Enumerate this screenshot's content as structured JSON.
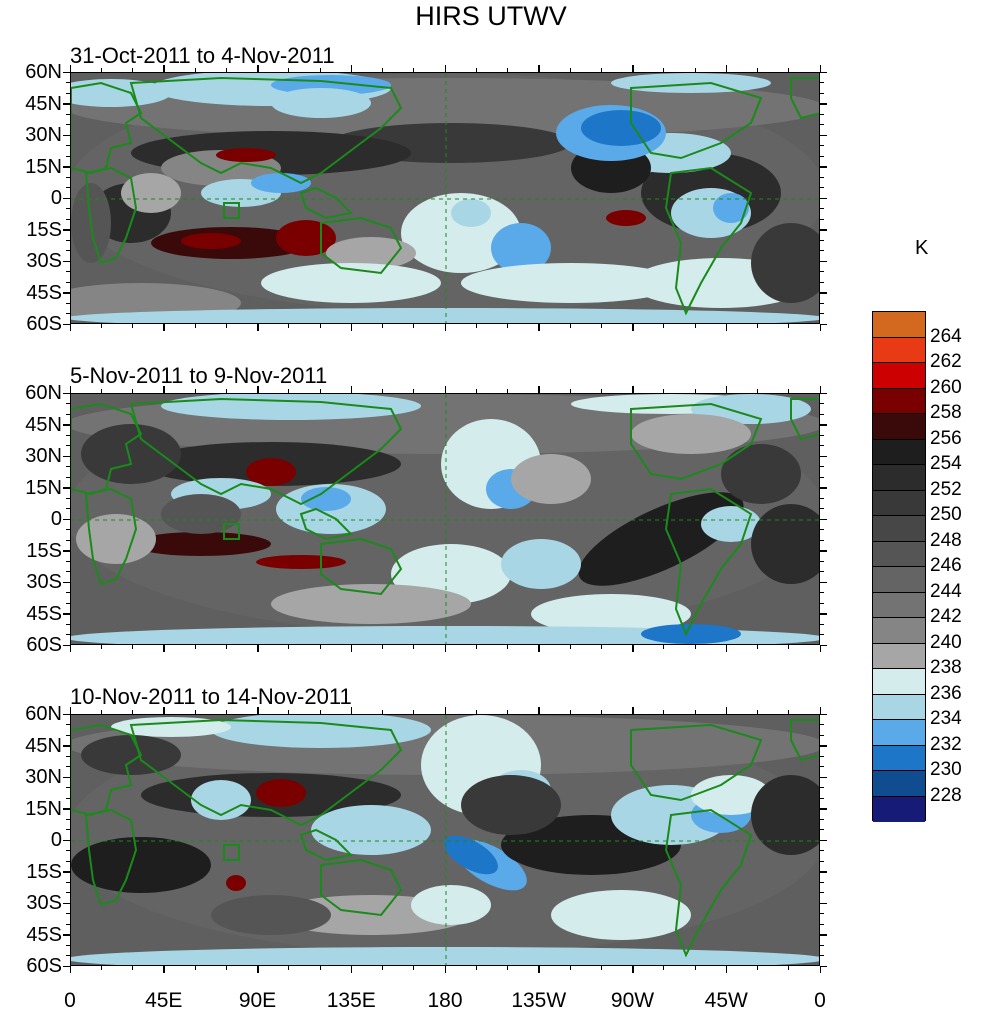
{
  "title": "HIRS UTWV",
  "unit": "K",
  "panels": [
    {
      "title": "31-Oct-2011 to 4-Nov-2011"
    },
    {
      "title": "5-Nov-2011 to 9-Nov-2011"
    },
    {
      "title": "10-Nov-2011 to 14-Nov-2011"
    }
  ],
  "lat_labels": [
    "60N",
    "45N",
    "30N",
    "15N",
    "0",
    "15S",
    "30S",
    "45S",
    "60S"
  ],
  "lon_labels": [
    "0",
    "45E",
    "90E",
    "135E",
    "180",
    "135W",
    "90W",
    "45W",
    "0"
  ],
  "colorbar": {
    "labels": [
      "264",
      "262",
      "260",
      "258",
      "256",
      "254",
      "252",
      "250",
      "248",
      "246",
      "244",
      "242",
      "240",
      "238",
      "236",
      "234",
      "232",
      "230",
      "228"
    ],
    "colors": [
      "#d2691e",
      "#e83a14",
      "#cc0000",
      "#7a0000",
      "#3a0a0a",
      "#1e1e1e",
      "#2c2c2c",
      "#393939",
      "#474747",
      "#555555",
      "#646464",
      "#737373",
      "#858585",
      "#a6a6a6",
      "#d4ecec",
      "#a9d6e5",
      "#5aaaea",
      "#1d76c7",
      "#0f4d90",
      "#161b78"
    ]
  },
  "map_style": {
    "coastline_color": "#1a8a1a",
    "base_color": "#5f5f5f"
  },
  "chart_data": {
    "type": "heatmap",
    "title": "HIRS UTWV",
    "unit": "K",
    "x_range": [
      "0",
      "0"
    ],
    "y_range": [
      "60S",
      "60N"
    ],
    "levels": [
      228,
      230,
      232,
      234,
      236,
      238,
      240,
      242,
      244,
      246,
      248,
      250,
      252,
      254,
      256,
      258,
      260,
      262,
      264
    ],
    "panels": [
      "31-Oct-2011 to 4-Nov-2011",
      "5-Nov-2011 to 9-Nov-2011",
      "10-Nov-2011 to 14-Nov-2011"
    ]
  }
}
